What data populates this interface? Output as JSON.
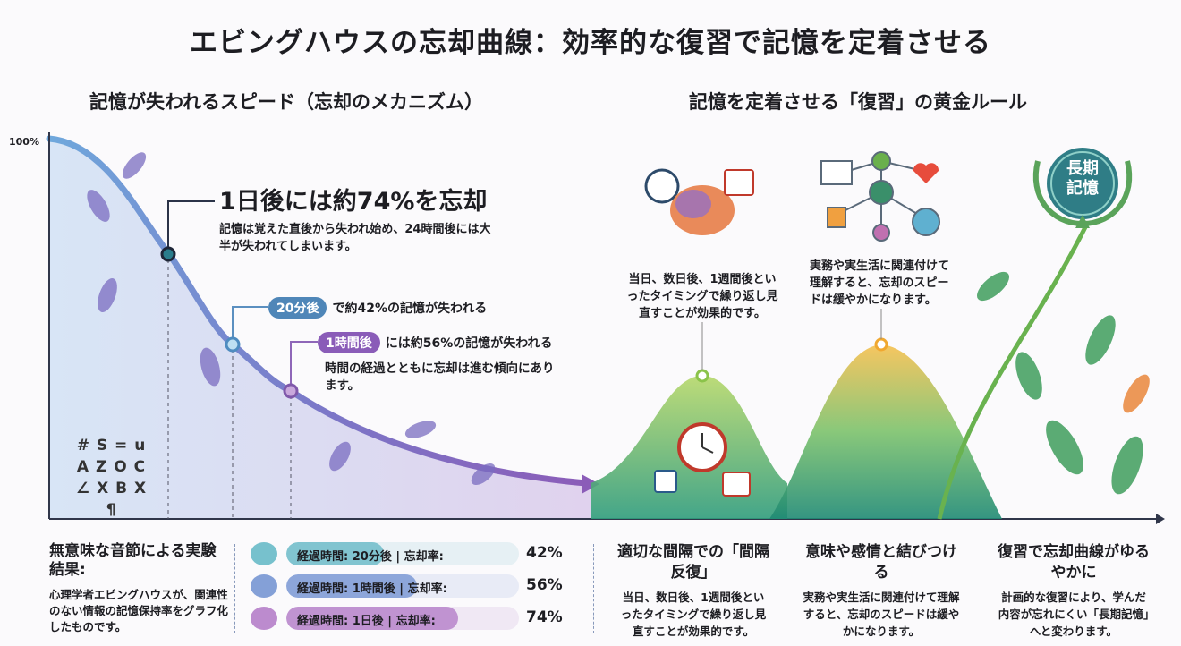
{
  "title": "エビングハウスの忘却曲線：効率的な復習で記憶を定着させる",
  "left_section": {
    "heading": "記憶が失われるスピード（忘却のメカニズム）",
    "axis_label": "100%",
    "callout_day": {
      "headline": "1日後には約74%を忘却",
      "text": "記憶は覚えた直後から失われ始め、24時間後には大半が失われてしまいます。"
    },
    "callout_20min": {
      "pill": "20分後",
      "text": "で約42%の記憶が失われる"
    },
    "callout_1h": {
      "pill": "1時間後",
      "text": "には約56%の記憶が失われる",
      "note": "時間の経過とともに忘却は進む傾向にあります。"
    },
    "nonsense_letters": "# S = u A Z O C ∠ X B X ¶"
  },
  "right_section": {
    "heading": "記憶を定着させる「復習」の黄金ルール",
    "spaced_note": "当日、数日後、1週間後といったタイミングで繰り返し見直すことが効果的です。",
    "meaning_note": "実務や実生活に関連付けて理解すると、忘却のスピードは緩やかになります。",
    "badge": "長期記憶"
  },
  "experiment": {
    "heading": "無意味な音節による実験結果:",
    "text": "心理学者エビングハウスが、関連性のない情報の記憶保持率をグラフ化したものです。",
    "rows": [
      {
        "label": "経過時間: 20分後 | 忘却率:",
        "value": "42%",
        "fraction": 0.42,
        "color": "#5fb6c4"
      },
      {
        "label": "経過時間: 1時間後 | 忘却率:",
        "value": "56%",
        "fraction": 0.56,
        "color": "#6f8fd0"
      },
      {
        "label": "経過時間: 1日後 | 忘却率:",
        "value": "74%",
        "fraction": 0.74,
        "color": "#b077c6"
      }
    ]
  },
  "rules": [
    {
      "heading": "適切な間隔での「間隔反復」",
      "text": "当日、数日後、1週間後といったタイミングで繰り返し見直すことが効果的です。"
    },
    {
      "heading": "意味や感情と結びつける",
      "text": "実務や実生活に関連付けて理解すると、忘却のスピードは緩やかになります。"
    },
    {
      "heading": "復習で忘却曲線がゆるやかに",
      "text": "計画的な復習により、学んだ内容が忘れにくい「長期記憶」へと変わります。"
    }
  ]
}
